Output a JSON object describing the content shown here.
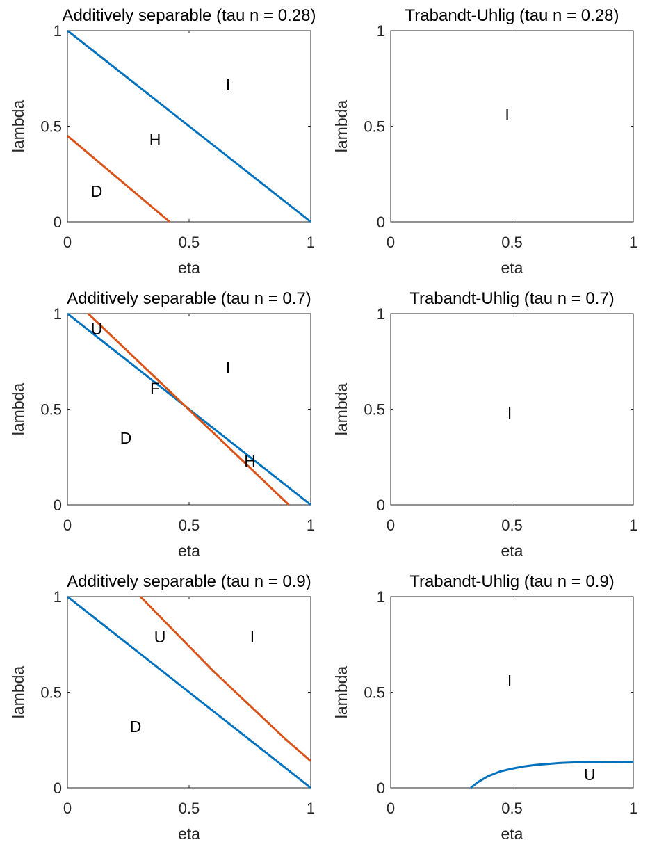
{
  "chart_data": [
    {
      "type": "line",
      "title": "Additively separable (tau n = 0.28)",
      "xlabel": "eta",
      "ylabel": "lambda",
      "xlim": [
        0,
        1
      ],
      "ylim": [
        0,
        1
      ],
      "xticks": [
        "0",
        "0.5",
        "1"
      ],
      "yticks": [
        "0",
        "0.5",
        "1"
      ],
      "grid": false,
      "series": [
        {
          "color": "#0072BD",
          "x": [
            0,
            1
          ],
          "y": [
            1,
            0
          ]
        },
        {
          "color": "#D95319",
          "x": [
            0,
            0.42
          ],
          "y": [
            0.45,
            0
          ]
        }
      ],
      "annotations": [
        {
          "text": "I",
          "x": 0.66,
          "y": 0.72
        },
        {
          "text": "H",
          "x": 0.36,
          "y": 0.43
        },
        {
          "text": "D",
          "x": 0.12,
          "y": 0.16
        }
      ]
    },
    {
      "type": "line",
      "title": "Trabandt-Uhlig (tau n = 0.28)",
      "xlabel": "eta",
      "ylabel": "lambda",
      "xlim": [
        0,
        1
      ],
      "ylim": [
        0,
        1
      ],
      "xticks": [
        "0",
        "0.5",
        "1"
      ],
      "yticks": [
        "0",
        "0.5",
        "1"
      ],
      "grid": false,
      "series": [],
      "annotations": [
        {
          "text": "I",
          "x": 0.48,
          "y": 0.56
        }
      ]
    },
    {
      "type": "line",
      "title": "Additively separable (tau n = 0.7)",
      "xlabel": "eta",
      "ylabel": "lambda",
      "xlim": [
        0,
        1
      ],
      "ylim": [
        0,
        1
      ],
      "xticks": [
        "0",
        "0.5",
        "1"
      ],
      "yticks": [
        "0",
        "0.5",
        "1"
      ],
      "grid": false,
      "series": [
        {
          "color": "#0072BD",
          "x": [
            0,
            1
          ],
          "y": [
            1,
            0
          ]
        },
        {
          "color": "#D95319",
          "x": [
            0.085,
            0.91
          ],
          "y": [
            1,
            0
          ]
        }
      ],
      "annotations": [
        {
          "text": "U",
          "x": 0.12,
          "y": 0.92
        },
        {
          "text": "I",
          "x": 0.66,
          "y": 0.72
        },
        {
          "text": "F",
          "x": 0.36,
          "y": 0.61
        },
        {
          "text": "D",
          "x": 0.24,
          "y": 0.35
        },
        {
          "text": "H",
          "x": 0.75,
          "y": 0.23
        }
      ]
    },
    {
      "type": "line",
      "title": "Trabandt-Uhlig (tau n = 0.7)",
      "xlabel": "eta",
      "ylabel": "lambda",
      "xlim": [
        0,
        1
      ],
      "ylim": [
        0,
        1
      ],
      "xticks": [
        "0",
        "0.5",
        "1"
      ],
      "yticks": [
        "0",
        "0.5",
        "1"
      ],
      "grid": false,
      "series": [],
      "annotations": [
        {
          "text": "I",
          "x": 0.49,
          "y": 0.48
        }
      ]
    },
    {
      "type": "line",
      "title": "Additively separable (tau n = 0.9)",
      "xlabel": "eta",
      "ylabel": "lambda",
      "xlim": [
        0,
        1
      ],
      "ylim": [
        0,
        1
      ],
      "xticks": [
        "0",
        "0.5",
        "1"
      ],
      "yticks": [
        "0",
        "0.5",
        "1"
      ],
      "grid": false,
      "series": [
        {
          "color": "#0072BD",
          "x": [
            0,
            1
          ],
          "y": [
            1,
            0
          ]
        },
        {
          "color": "#D95319",
          "x": [
            0.3,
            0.4,
            0.5,
            0.6,
            0.7,
            0.8,
            0.9,
            1.0
          ],
          "y": [
            1.0,
            0.87,
            0.74,
            0.61,
            0.49,
            0.37,
            0.25,
            0.14
          ]
        }
      ],
      "annotations": [
        {
          "text": "U",
          "x": 0.38,
          "y": 0.79
        },
        {
          "text": "I",
          "x": 0.76,
          "y": 0.79
        },
        {
          "text": "D",
          "x": 0.28,
          "y": 0.32
        }
      ]
    },
    {
      "type": "line",
      "title": "Trabandt-Uhlig (tau n = 0.9)",
      "xlabel": "eta",
      "ylabel": "lambda",
      "xlim": [
        0,
        1
      ],
      "ylim": [
        0,
        1
      ],
      "xticks": [
        "0",
        "0.5",
        "1"
      ],
      "yticks": [
        "0",
        "0.5",
        "1"
      ],
      "grid": false,
      "series": [
        {
          "color": "#0072BD",
          "x": [
            0.33,
            0.36,
            0.4,
            0.45,
            0.5,
            0.55,
            0.6,
            0.7,
            0.8,
            0.9,
            1.0
          ],
          "y": [
            0.0,
            0.03,
            0.06,
            0.085,
            0.1,
            0.112,
            0.12,
            0.13,
            0.135,
            0.136,
            0.135
          ]
        }
      ],
      "annotations": [
        {
          "text": "I",
          "x": 0.49,
          "y": 0.56
        },
        {
          "text": "U",
          "x": 0.82,
          "y": 0.07
        }
      ]
    }
  ]
}
